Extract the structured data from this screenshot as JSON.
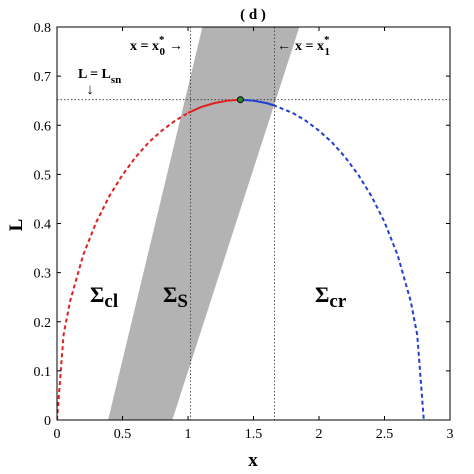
{
  "chart_data": {
    "type": "line",
    "title": "( d )",
    "x_label": "x",
    "y_label": "L",
    "xlim": [
      0,
      3
    ],
    "ylim": [
      0,
      0.8
    ],
    "xticks": [
      0,
      0.5,
      1,
      1.5,
      2,
      2.5,
      3
    ],
    "yticks": [
      0,
      0.1,
      0.2,
      0.3,
      0.4,
      0.5,
      0.6,
      0.7,
      0.8
    ],
    "band": {
      "color": "#b3b3b3",
      "x": [
        0.39,
        0.88,
        1.85,
        1.11
      ],
      "values": [
        0,
        0,
        0.8,
        0.8
      ]
    },
    "series": [
      {
        "color": "#e02020",
        "dash": true,
        "x": [
          0,
          0.05,
          0.1,
          0.2,
          0.3,
          0.4,
          0.5,
          0.6,
          0.7,
          0.8,
          0.9,
          1.0
        ],
        "values": [
          0,
          0.173,
          0.242,
          0.336,
          0.403,
          0.456,
          0.499,
          0.535,
          0.565,
          0.589,
          0.609,
          0.625
        ]
      },
      {
        "color": "#e02020",
        "dash": false,
        "x": [
          1.0,
          1.1,
          1.2,
          1.3,
          1.4
        ],
        "values": [
          0.625,
          0.637,
          0.645,
          0.65,
          0.652
        ]
      },
      {
        "color": "#1f3fd0",
        "dash": false,
        "x": [
          1.4,
          1.5,
          1.6,
          1.65
        ],
        "values": [
          0.652,
          0.65,
          0.645,
          0.641
        ]
      },
      {
        "color": "#1f3fd0",
        "dash": true,
        "x": [
          1.65,
          1.8,
          1.9,
          2.0,
          2.1,
          2.2,
          2.3,
          2.4,
          2.5,
          2.6,
          2.7,
          2.75,
          2.8
        ],
        "values": [
          0.641,
          0.625,
          0.609,
          0.589,
          0.565,
          0.535,
          0.499,
          0.456,
          0.403,
          0.336,
          0.242,
          0.173,
          0
        ]
      }
    ],
    "point": {
      "x": 1.4,
      "y": 0.652,
      "color": "#2e8b2e"
    },
    "vlines": [
      1.02,
      1.66
    ],
    "hline": 0.652,
    "annotations": [
      {
        "text": "x = x",
        "sub": "0",
        "sup": "*",
        "arrow": "→"
      },
      {
        "lead": "←",
        "text": "x = x",
        "sub": "1",
        "sup": "*"
      },
      {
        "text": "L = L",
        "sub": "sn",
        "below": "↓"
      },
      {
        "text": "Σ",
        "sub": "cl"
      },
      {
        "text": "Σ",
        "sub": "S"
      },
      {
        "text": "Σ",
        "sub": "cr"
      }
    ]
  }
}
